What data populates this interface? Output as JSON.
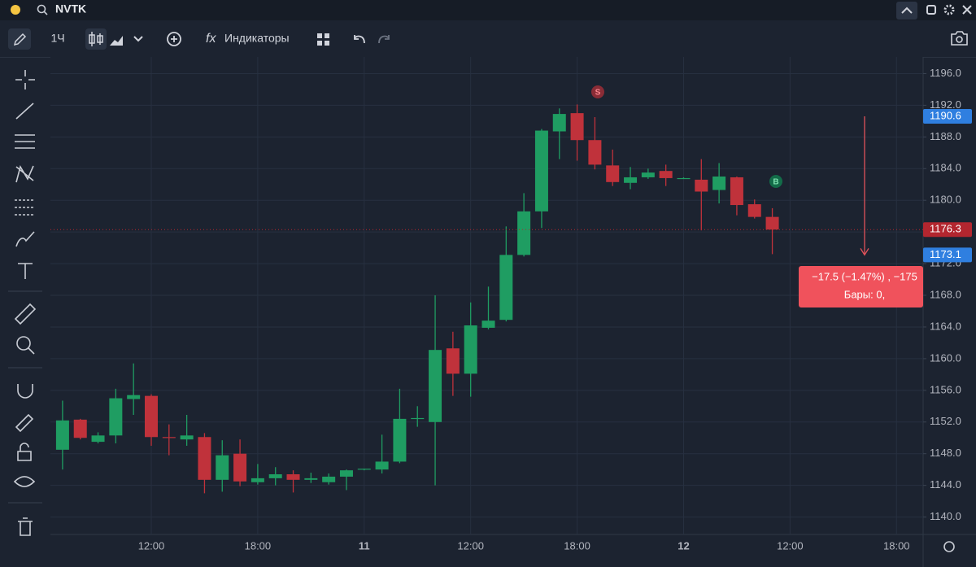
{
  "header": {
    "symbol": "NVTK",
    "interval": "1Ч",
    "indicators": "Индикаторы"
  },
  "chart_data": {
    "type": "candlestick",
    "categories": [
      null,
      null,
      null,
      null,
      null,
      "12:00",
      null,
      null,
      null,
      null,
      null,
      "18:00",
      null,
      null,
      null,
      null,
      null,
      "11",
      null,
      null,
      null,
      null,
      null,
      "12:00",
      null,
      null,
      null,
      null,
      null,
      "18:00",
      null,
      null,
      null,
      null,
      null,
      "12",
      null,
      null,
      null,
      null,
      null,
      "12:00",
      null,
      null,
      null,
      null,
      null,
      "18:00",
      null
    ],
    "open": [
      1148.5,
      1152.3,
      1149.5,
      1150.3,
      1154.9,
      1155.3,
      1150.1,
      1149.8,
      1150.1,
      1144.7,
      1148.0,
      1144.4,
      1144.9,
      1145.4,
      1144.7,
      1144.4,
      1145.1,
      1146.0,
      1146.0,
      1147.0,
      1152.4,
      1152.0,
      1161.3,
      1158.1,
      1163.9,
      1164.9,
      1173.1,
      1178.6,
      1188.7,
      1191.0,
      1187.6,
      1184.4,
      1182.2,
      1182.9,
      1183.7,
      1182.8,
      1182.6,
      1181.3,
      1182.9,
      1179.5,
      1177.9,
      null,
      null,
      null,
      null,
      null,
      null,
      null,
      null
    ],
    "high": [
      1154.7,
      1152.4,
      1150.7,
      1156.2,
      1159.4,
      1155.5,
      1151.7,
      1152.9,
      1150.6,
      1149.7,
      1149.8,
      1146.7,
      1146.3,
      1145.9,
      1145.6,
      1145.5,
      1146.0,
      1146.1,
      1150.4,
      1156.2,
      1154.0,
      1168.0,
      1163.4,
      1167.1,
      1169.1,
      1176.7,
      1180.9,
      1189.0,
      1191.6,
      1192.1,
      1190.5,
      1186.4,
      1184.2,
      1184.0,
      1184.5,
      1182.9,
      1185.2,
      1184.7,
      1183.0,
      1180.1,
      1179.0,
      null,
      null,
      null,
      null,
      null,
      null,
      null,
      null
    ],
    "low": [
      1146.0,
      1149.8,
      1149.3,
      1149.3,
      1152.9,
      1149.0,
      1147.8,
      1149.0,
      1143.0,
      1143.2,
      1143.9,
      1144.1,
      1144.0,
      1143.1,
      1144.3,
      1144.1,
      1143.4,
      1145.9,
      1145.5,
      1146.8,
      1151.4,
      1144.0,
      1155.3,
      1155.2,
      1163.7,
      1164.7,
      1172.9,
      1176.5,
      1185.2,
      1185.0,
      1183.9,
      1181.8,
      1181.4,
      1182.7,
      1181.8,
      1182.7,
      1176.2,
      1179.6,
      1178.1,
      1177.7,
      1173.2,
      null,
      null,
      null,
      null,
      null,
      null,
      null,
      null
    ],
    "close": [
      1152.2,
      1150.0,
      1150.3,
      1155.0,
      1155.4,
      1150.1,
      1150.0,
      1150.3,
      1144.7,
      1147.8,
      1144.5,
      1144.9,
      1145.4,
      1144.7,
      1144.9,
      1145.1,
      1145.9,
      1146.1,
      1147.0,
      1152.4,
      1152.5,
      1161.1,
      1158.1,
      1164.2,
      1164.8,
      1173.1,
      1178.6,
      1188.8,
      1190.9,
      1187.6,
      1184.5,
      1182.3,
      1182.9,
      1183.5,
      1182.8,
      1182.8,
      1181.1,
      1183.0,
      1179.4,
      1177.9,
      1176.3,
      null,
      null,
      null,
      null,
      null,
      null,
      null,
      null
    ],
    "up_color": "#1f9d62",
    "down_color": "#c0323b",
    "ylim": [
      1137.8,
      1198.1
    ],
    "yticks": [
      {
        "value": 1140,
        "label": "1140.0"
      },
      {
        "value": 1144,
        "label": "1144.0"
      },
      {
        "value": 1148,
        "label": "1148.0"
      },
      {
        "value": 1152,
        "label": "1152.0"
      },
      {
        "value": 1156,
        "label": "1156.0"
      },
      {
        "value": 1160,
        "label": "1160.0"
      },
      {
        "value": 1164,
        "label": "1164.0"
      },
      {
        "value": 1168,
        "label": "1168.0"
      },
      {
        "value": 1172,
        "label": "1172.0"
      },
      {
        "value": 1176,
        "label": "1176.0"
      },
      {
        "value": 1180,
        "label": "1180.0"
      },
      {
        "value": 1184,
        "label": "1184.0"
      },
      {
        "value": 1188,
        "label": "1188.0"
      },
      {
        "value": 1192,
        "label": "1192.0"
      },
      {
        "value": 1196,
        "label": "1196.0"
      }
    ],
    "grid": true,
    "price_tags": [
      {
        "value": 1190.6,
        "color": "#2f7fe0"
      },
      {
        "value": 1176.3,
        "color": "#b3262f"
      },
      {
        "value": 1173.1,
        "color": "#2f7fe0"
      }
    ],
    "annotations": [
      "S",
      "B"
    ],
    "measure": {
      "line1": "−17.5 (−1.47%) , −175",
      "line2": "Бары: 0,"
    }
  }
}
